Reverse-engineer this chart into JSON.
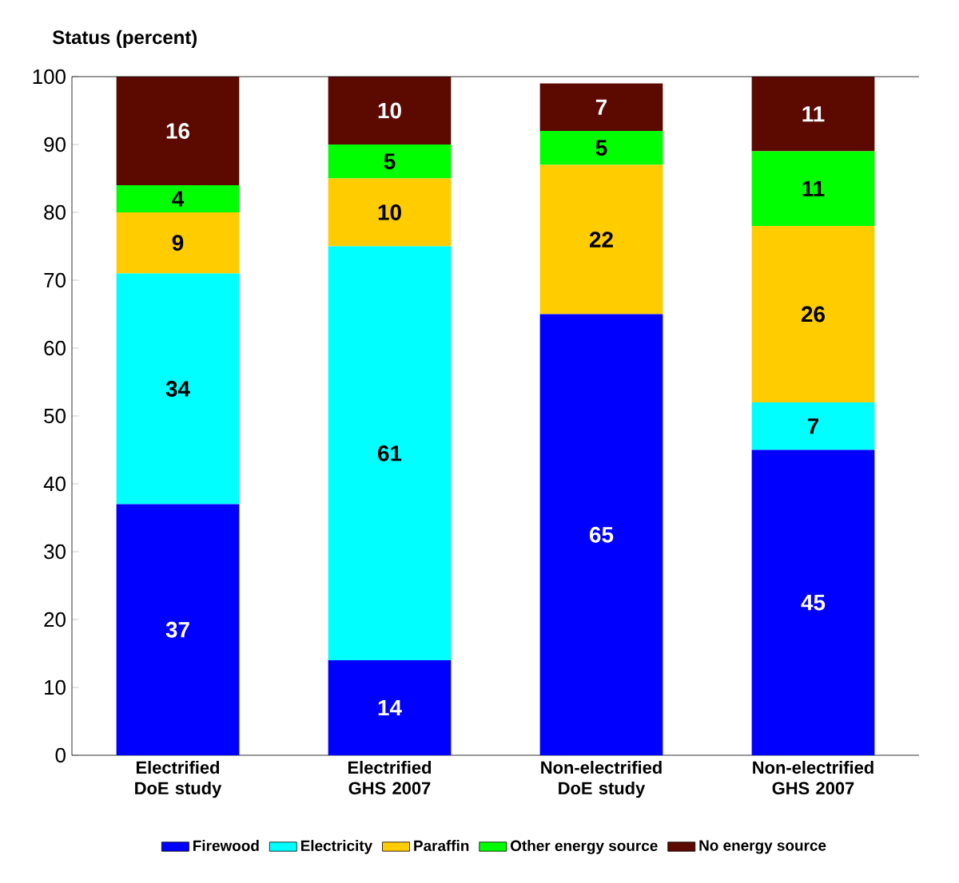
{
  "chart_data": {
    "type": "bar",
    "stacked": true,
    "title": "Status (percent)",
    "categories": [
      "Electrified DoE study",
      "Electrified GHS 2007",
      "Non-electrified DoE study",
      "Non-electrified GHS 2007"
    ],
    "series": [
      {
        "name": "Firewood",
        "color": "#0000ff",
        "values": [
          37,
          14,
          65,
          45
        ]
      },
      {
        "name": "Electricity",
        "color": "#00ffff",
        "values": [
          34,
          61,
          null,
          7
        ]
      },
      {
        "name": "Paraffin",
        "color": "#ffcc00",
        "values": [
          9,
          10,
          22,
          26
        ]
      },
      {
        "name": "Other energy source",
        "color": "#00ff00",
        "values": [
          4,
          5,
          5,
          11
        ]
      },
      {
        "name": "No energy source",
        "color": "#5c0a00",
        "values": [
          16,
          10,
          7,
          11
        ]
      }
    ],
    "ylim": [
      0,
      100
    ],
    "yticks": [
      0,
      10,
      20,
      30,
      40,
      50,
      60,
      70,
      80,
      90,
      100
    ],
    "data_labels": true,
    "legend": "bottom"
  }
}
